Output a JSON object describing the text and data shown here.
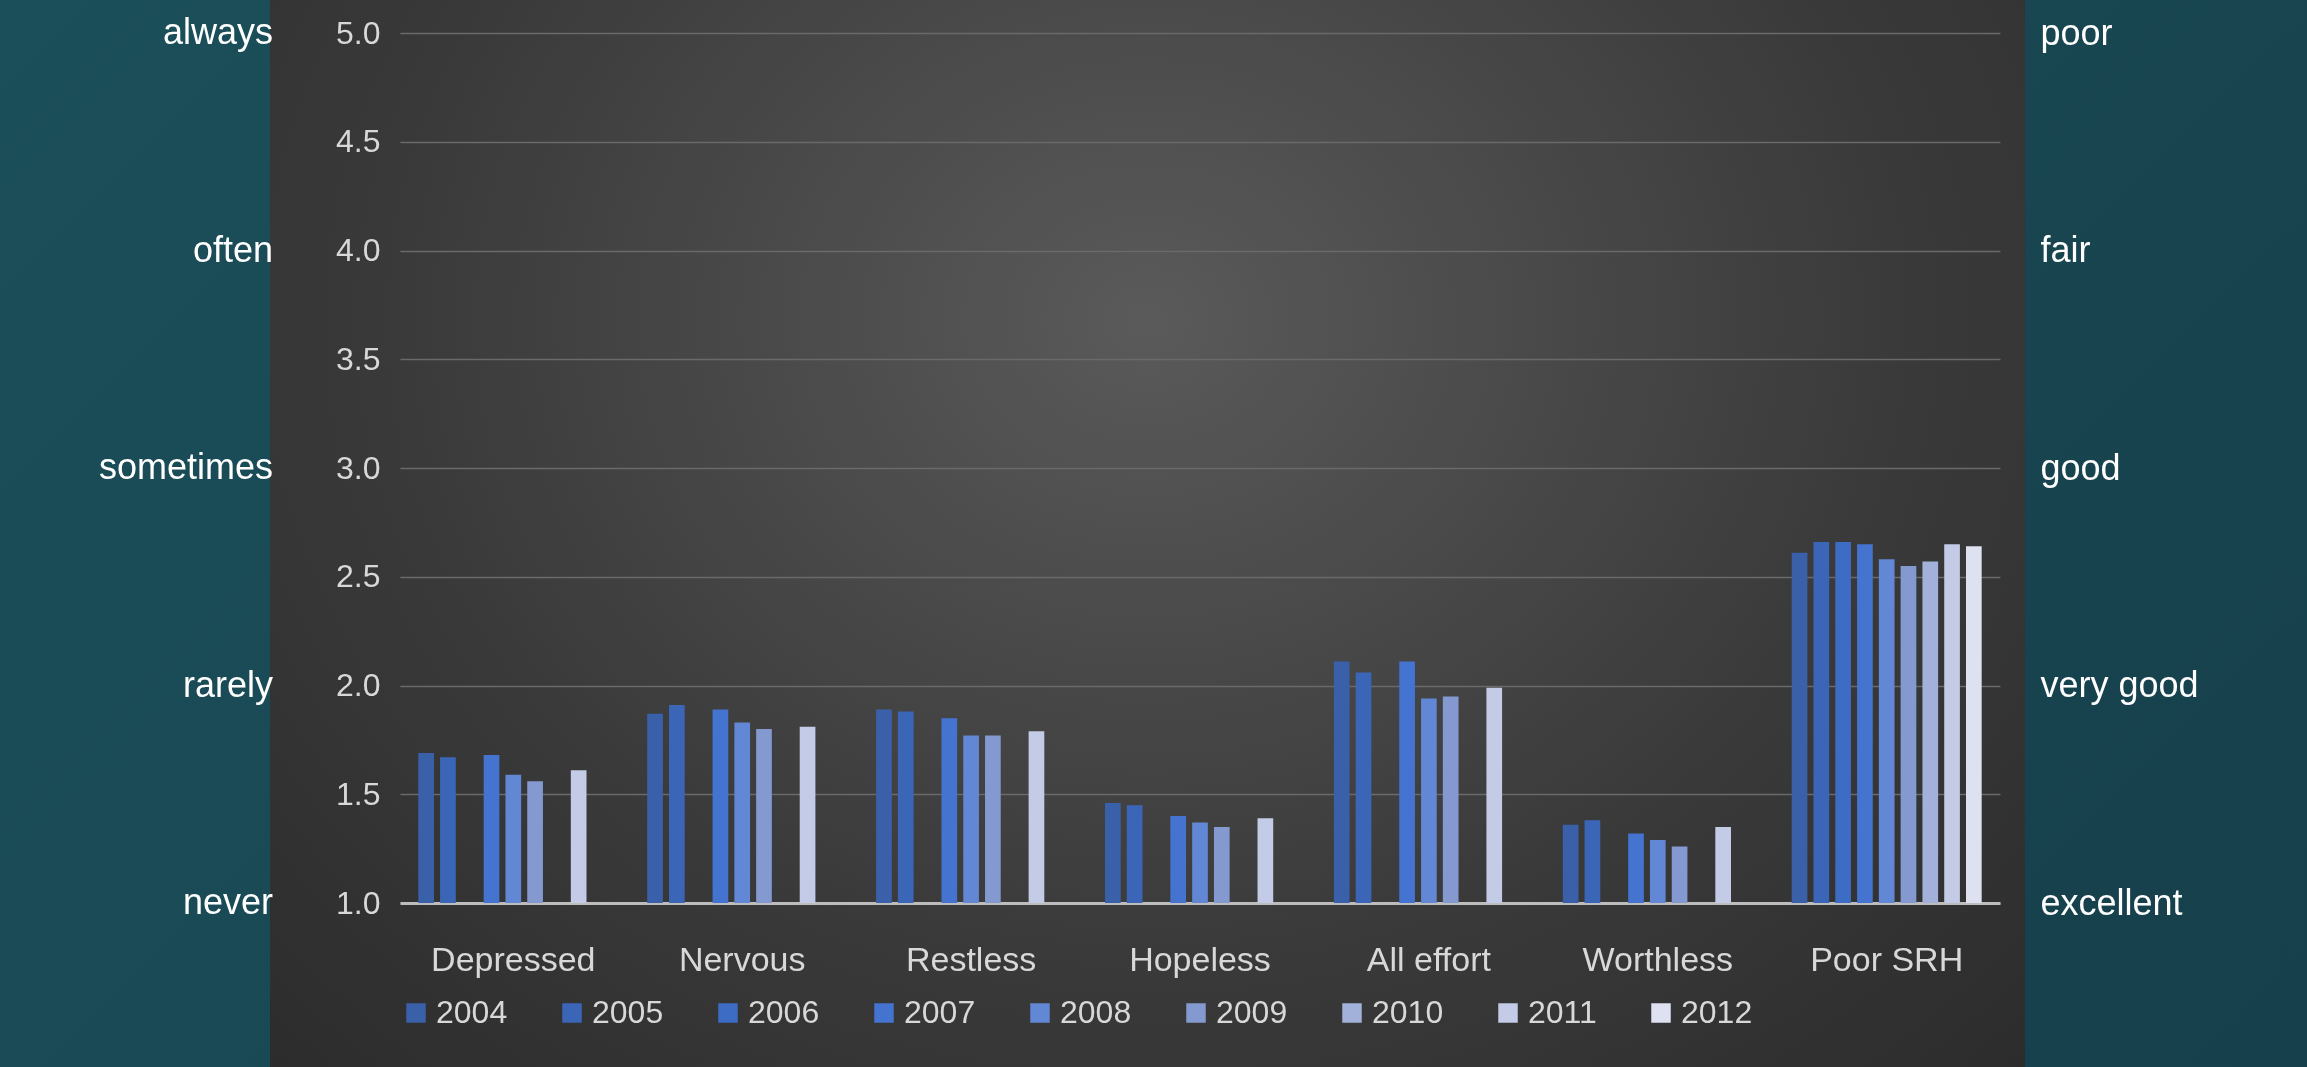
{
  "chart_data": {
    "type": "bar",
    "categories": [
      "Depressed",
      "Nervous",
      "Restless",
      "Hopeless",
      "All effort",
      "Worthless",
      "Poor SRH"
    ],
    "series": [
      {
        "name": "2004",
        "color": "#3b60aa",
        "values": [
          1.69,
          1.87,
          1.89,
          1.46,
          2.11,
          1.36,
          2.61
        ]
      },
      {
        "name": "2005",
        "color": "#3b66b8",
        "values": [
          1.67,
          1.91,
          1.88,
          1.45,
          2.06,
          1.38,
          2.66
        ]
      },
      {
        "name": "2006",
        "color": "#3c6cc4",
        "values": [
          null,
          null,
          null,
          null,
          null,
          null,
          2.66
        ]
      },
      {
        "name": "2007",
        "color": "#4474d0",
        "values": [
          1.68,
          1.89,
          1.85,
          1.4,
          2.11,
          1.32,
          2.65
        ]
      },
      {
        "name": "2008",
        "color": "#6287d4",
        "values": [
          1.59,
          1.83,
          1.77,
          1.37,
          1.94,
          1.29,
          2.58
        ]
      },
      {
        "name": "2009",
        "color": "#8499d0",
        "values": [
          1.56,
          1.8,
          1.77,
          1.35,
          1.95,
          1.26,
          2.55
        ]
      },
      {
        "name": "2010",
        "color": "#a2b1da",
        "values": [
          null,
          null,
          null,
          null,
          null,
          null,
          2.57
        ]
      },
      {
        "name": "2011",
        "color": "#c3cbe6",
        "values": [
          1.61,
          1.81,
          1.79,
          1.39,
          1.99,
          1.35,
          2.65
        ]
      },
      {
        "name": "2012",
        "color": "#dde1f0",
        "values": [
          null,
          null,
          null,
          null,
          null,
          null,
          2.64
        ]
      }
    ],
    "ylim": [
      1,
      5
    ],
    "yticks": [
      {
        "value": 1,
        "label": "1.0"
      },
      {
        "value": 1.5,
        "label": "1.5"
      },
      {
        "value": 2,
        "label": "2.0"
      },
      {
        "value": 2.5,
        "label": "2.5"
      },
      {
        "value": 3,
        "label": "3.0"
      },
      {
        "value": 3.5,
        "label": "3.5"
      },
      {
        "value": 4,
        "label": "4.0"
      },
      {
        "value": 4.5,
        "label": "4.5"
      },
      {
        "value": 5,
        "label": "5.0"
      }
    ],
    "y2_categories": [
      "poor",
      "fair",
      "good",
      "very good",
      "excellent"
    ],
    "annotations": [
      "always",
      "often",
      "sometimes",
      "rarely",
      "never"
    ],
    "grid": "y",
    "legend": "bottom"
  }
}
